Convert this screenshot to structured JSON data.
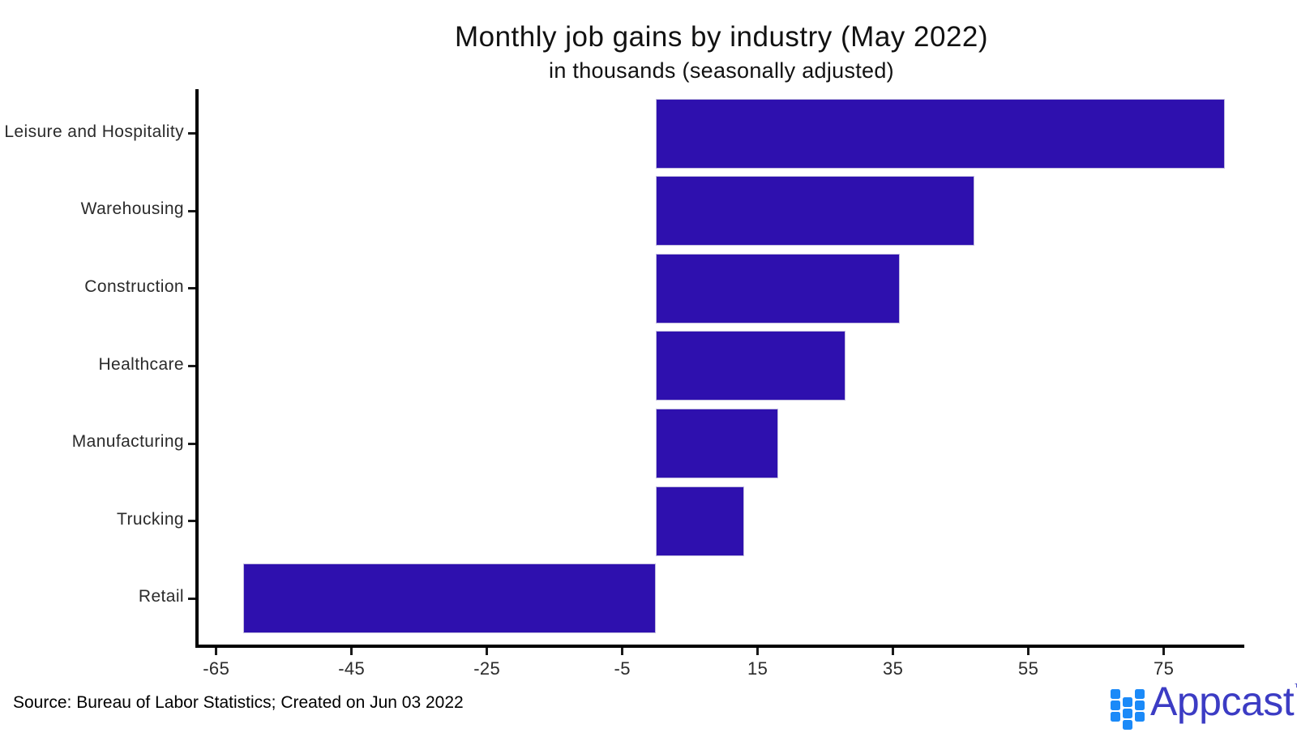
{
  "header": {
    "title": "Monthly job gains by industry (May 2022)",
    "subtitle": "in thousands (seasonally adjusted)"
  },
  "footer": {
    "source": "Source: Bureau of Labor Statistics; Created on Jun 03 2022"
  },
  "logo": {
    "text": "Appcast",
    "tm": "™",
    "mark_color": "#1b8af8",
    "text_color": "#3c3cc4"
  },
  "chart_data": {
    "type": "bar",
    "orientation": "horizontal",
    "title": "Monthly job gains by industry (May 2022)",
    "subtitle": "in thousands (seasonally adjusted)",
    "categories": [
      "Leisure and Hospitality",
      "Warehousing",
      "Construction",
      "Healthcare",
      "Manufacturing",
      "Trucking",
      "Retail"
    ],
    "values": [
      84,
      47,
      36,
      28,
      18,
      13,
      -61
    ],
    "units": "thousands of jobs",
    "bar_color": "#2e10ae",
    "xlim": [
      -67.6,
      86.9
    ],
    "xticks": [
      -65,
      -45,
      -25,
      -5,
      15,
      35,
      55,
      75
    ],
    "grid": false,
    "legend": "none"
  }
}
